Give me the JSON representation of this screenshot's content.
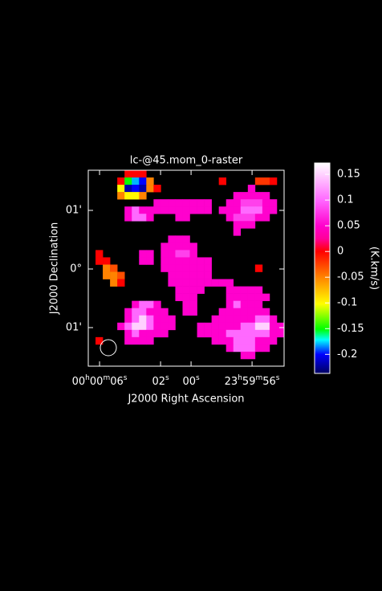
{
  "chart_data": {
    "type": "raster",
    "title": "lc-@45.mom_0-raster",
    "xlabel": "J2000 Right Ascension",
    "ylabel": "J2000 Declination",
    "xlim": [
      6.74,
      -6.1
    ],
    "xticks": [
      {
        "value": 6,
        "label": "00h00m06s"
      },
      {
        "value": 2,
        "label": "02s"
      },
      {
        "value": 0,
        "label": "00s"
      },
      {
        "value": -4,
        "label": "23h59m56s"
      }
    ],
    "ylim": [
      -1.658,
      1.685
    ],
    "yticks": [
      {
        "value": 1,
        "label": "01'"
      },
      {
        "value": 0,
        "label": "0°"
      },
      {
        "value": -1,
        "label": "01'"
      }
    ],
    "colorbar": {
      "label": "(K.km/s)",
      "lim": [
        -0.237,
        0.172
      ],
      "ticks": [
        0.15,
        0.1,
        0.05,
        0,
        -0.05,
        -0.1,
        -0.15,
        -0.2
      ]
    },
    "z": [
      [
        null,
        null,
        null,
        null,
        null,
        0,
        0,
        0,
        null,
        null,
        null,
        null,
        null,
        null,
        null,
        null,
        null,
        null,
        null,
        null,
        null,
        null,
        null,
        null,
        null,
        null,
        null
      ],
      [
        null,
        null,
        null,
        null,
        0,
        -0.15,
        -0.18,
        -0.2,
        -0.05,
        null,
        null,
        null,
        null,
        null,
        null,
        null,
        null,
        null,
        0,
        null,
        null,
        null,
        null,
        -0.02,
        -0.02,
        0,
        null
      ],
      [
        null,
        null,
        null,
        null,
        -0.1,
        -0.22,
        -0.2,
        -0.22,
        -0.05,
        0,
        null,
        null,
        null,
        null,
        null,
        null,
        null,
        null,
        null,
        null,
        null,
        null,
        0.05,
        null,
        null,
        null,
        null
      ],
      [
        null,
        null,
        null,
        null,
        -0.05,
        -0.1,
        -0.1,
        -0.05,
        null,
        null,
        null,
        null,
        null,
        null,
        null,
        null,
        null,
        null,
        null,
        null,
        0.05,
        0.05,
        0.05,
        0.05,
        0.05,
        null,
        null
      ],
      [
        null,
        null,
        null,
        null,
        null,
        null,
        null,
        null,
        null,
        0.05,
        0.05,
        0.05,
        0.05,
        0.05,
        0.05,
        0.05,
        0.05,
        null,
        null,
        0.05,
        0.05,
        0.08,
        0.08,
        0.08,
        0.05,
        0.05,
        null
      ],
      [
        null,
        null,
        null,
        null,
        null,
        0.05,
        0.1,
        0.05,
        0.05,
        0.05,
        0.05,
        0.05,
        0.05,
        0.05,
        0.05,
        0.05,
        0.05,
        null,
        0.05,
        0.05,
        0.05,
        0.1,
        0.1,
        0.1,
        0.05,
        0.05,
        null
      ],
      [
        null,
        null,
        null,
        null,
        null,
        0.05,
        0.1,
        0.1,
        0.05,
        null,
        null,
        null,
        0.05,
        0.05,
        null,
        null,
        null,
        null,
        null,
        0.05,
        0.08,
        0.08,
        0.08,
        0.05,
        0.05,
        null,
        null
      ],
      [
        null,
        null,
        null,
        null,
        null,
        null,
        null,
        null,
        null,
        null,
        null,
        null,
        null,
        null,
        null,
        null,
        null,
        null,
        null,
        null,
        0.05,
        0.05,
        0.05,
        null,
        null,
        null,
        null
      ],
      [
        null,
        null,
        null,
        null,
        null,
        null,
        null,
        null,
        null,
        null,
        null,
        null,
        null,
        null,
        null,
        null,
        null,
        null,
        null,
        null,
        0.05,
        null,
        null,
        null,
        null,
        null,
        null
      ],
      [
        null,
        null,
        null,
        null,
        null,
        null,
        null,
        null,
        null,
        null,
        null,
        0.05,
        0.05,
        0.05,
        null,
        null,
        null,
        null,
        null,
        null,
        null,
        null,
        null,
        null,
        null,
        null,
        null
      ],
      [
        null,
        null,
        null,
        null,
        null,
        null,
        null,
        null,
        null,
        null,
        0.05,
        0.05,
        0.05,
        0.05,
        0.05,
        null,
        null,
        null,
        null,
        null,
        null,
        null,
        null,
        null,
        null,
        null,
        null
      ],
      [
        null,
        0,
        null,
        null,
        null,
        null,
        null,
        0.05,
        0.05,
        null,
        0.05,
        0.05,
        0.08,
        0.08,
        0.05,
        null,
        null,
        null,
        null,
        null,
        null,
        null,
        null,
        null,
        null,
        null,
        null
      ],
      [
        null,
        0,
        0,
        null,
        null,
        null,
        null,
        0.05,
        0.05,
        null,
        0.05,
        0.05,
        0.05,
        0.05,
        0.05,
        0.05,
        0.05,
        null,
        null,
        null,
        null,
        null,
        null,
        null,
        null,
        null,
        null
      ],
      [
        null,
        null,
        -0.05,
        -0.03,
        null,
        null,
        null,
        null,
        null,
        null,
        0.05,
        0.05,
        0.05,
        0.05,
        0.05,
        0.05,
        0.05,
        null,
        null,
        null,
        null,
        null,
        null,
        0,
        null,
        null,
        null
      ],
      [
        null,
        null,
        -0.05,
        -0.05,
        -0.03,
        null,
        null,
        null,
        null,
        null,
        null,
        0.05,
        0.05,
        0.05,
        0.05,
        0.05,
        0.05,
        null,
        null,
        null,
        null,
        null,
        null,
        null,
        null,
        null,
        null
      ],
      [
        null,
        null,
        null,
        -0.05,
        0,
        null,
        null,
        null,
        null,
        null,
        null,
        0.05,
        0.05,
        0.05,
        0.05,
        0.05,
        0.05,
        0.05,
        0.05,
        0.05,
        null,
        null,
        null,
        null,
        null,
        null,
        null
      ],
      [
        null,
        null,
        null,
        null,
        null,
        null,
        null,
        null,
        null,
        null,
        null,
        null,
        0.05,
        0.05,
        0.05,
        0.05,
        null,
        null,
        null,
        0.05,
        0.05,
        0.05,
        0.05,
        0.05,
        null,
        null,
        null
      ],
      [
        null,
        null,
        null,
        null,
        null,
        null,
        null,
        null,
        null,
        null,
        null,
        null,
        0.05,
        0.05,
        0.05,
        null,
        null,
        null,
        null,
        0.05,
        0.05,
        0.05,
        0.05,
        0.05,
        0.05,
        null,
        null
      ],
      [
        null,
        null,
        null,
        null,
        null,
        null,
        0.05,
        0.1,
        0.1,
        0.05,
        null,
        null,
        null,
        0.05,
        0.05,
        null,
        null,
        null,
        null,
        0.05,
        0.1,
        0.05,
        0.05,
        0.05,
        null,
        null,
        null
      ],
      [
        null,
        null,
        null,
        null,
        null,
        0.05,
        0.1,
        0.1,
        0.05,
        0.05,
        0.05,
        null,
        null,
        0.05,
        0.05,
        null,
        null,
        null,
        0.05,
        0.05,
        0.05,
        0.05,
        0.05,
        0.05,
        0.05,
        null,
        null
      ],
      [
        null,
        null,
        null,
        null,
        null,
        0.05,
        0.1,
        0.15,
        0.1,
        0.05,
        0.05,
        0.05,
        null,
        null,
        null,
        null,
        null,
        0.05,
        0.05,
        0.05,
        0.05,
        0.05,
        0.05,
        0.1,
        0.1,
        0.05,
        null
      ],
      [
        null,
        null,
        null,
        null,
        0.05,
        0.1,
        0.15,
        0.15,
        0.1,
        0.05,
        0.05,
        0.05,
        null,
        null,
        null,
        0.05,
        0.05,
        0.05,
        0.05,
        0.05,
        0.05,
        0.1,
        0.1,
        0.15,
        0.15,
        0.05,
        0.05
      ],
      [
        null,
        null,
        null,
        null,
        null,
        0.05,
        0.1,
        0.05,
        0.05,
        0.05,
        0.05,
        null,
        null,
        null,
        null,
        0.05,
        0.05,
        0.05,
        0.05,
        0.1,
        0.1,
        0.1,
        0.1,
        0.1,
        0.1,
        0.05,
        0.05
      ],
      [
        null,
        0,
        null,
        null,
        null,
        0.05,
        0.05,
        0.05,
        0.05,
        null,
        null,
        null,
        null,
        null,
        null,
        null,
        null,
        0.05,
        0.05,
        0.05,
        0.1,
        0.1,
        0.1,
        0.05,
        0.05,
        0.05,
        null
      ],
      [
        null,
        null,
        null,
        null,
        null,
        null,
        null,
        null,
        null,
        null,
        null,
        null,
        null,
        null,
        null,
        null,
        null,
        null,
        null,
        0.05,
        0.1,
        0.1,
        0.1,
        0.05,
        0.05,
        null,
        null
      ],
      [
        null,
        null,
        null,
        null,
        null,
        null,
        null,
        null,
        null,
        null,
        null,
        null,
        null,
        null,
        null,
        null,
        null,
        null,
        null,
        null,
        null,
        0.05,
        0.05,
        null,
        null,
        null,
        null
      ],
      [
        null,
        null,
        null,
        null,
        null,
        null,
        null,
        null,
        null,
        null,
        null,
        null,
        null,
        null,
        null,
        null,
        null,
        null,
        null,
        null,
        null,
        null,
        null,
        null,
        null,
        null,
        null
      ]
    ]
  }
}
